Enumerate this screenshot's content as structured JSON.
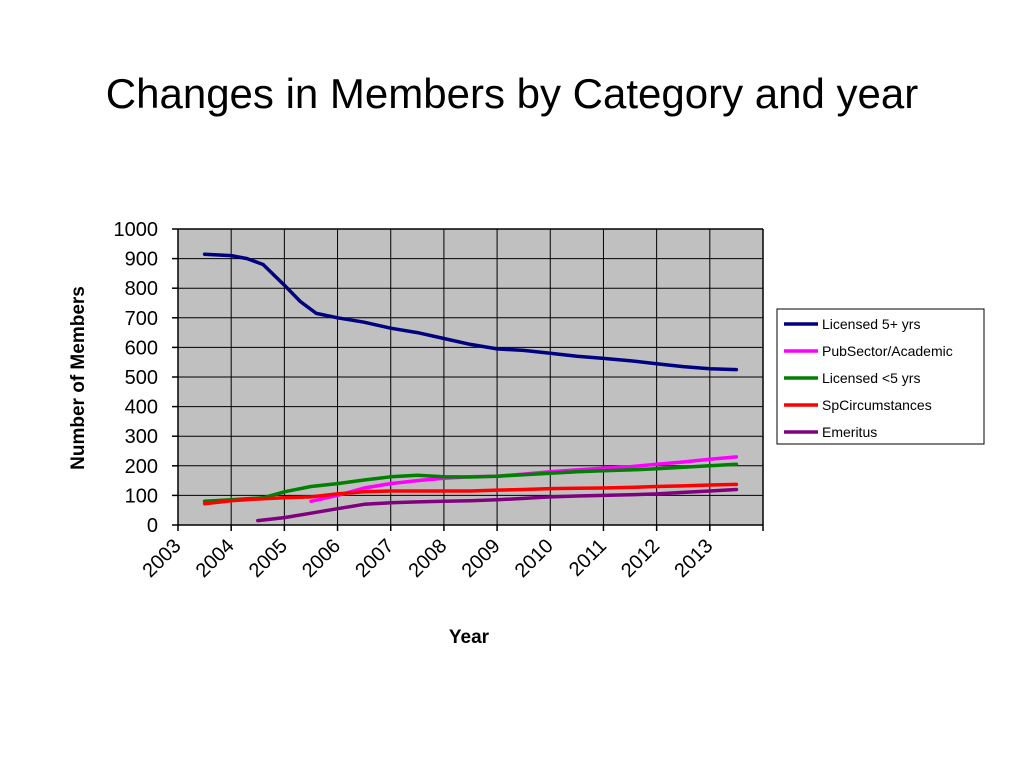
{
  "slide": {
    "title": "Changes in Members by Category and year"
  },
  "chart_data": {
    "type": "line",
    "xlabel": "Year",
    "ylabel": "Number of Members",
    "categories": [
      "2003",
      "2004",
      "2005",
      "2006",
      "2007",
      "2008",
      "2009",
      "2010",
      "2011",
      "2012",
      "2013"
    ],
    "xlim": [
      2003,
      2014
    ],
    "ylim": [
      0,
      1000
    ],
    "yticks": [
      0,
      100,
      200,
      300,
      400,
      500,
      600,
      700,
      800,
      900,
      1000
    ],
    "grid": true,
    "legend_position": "right",
    "plot_background": "#c0c0c0",
    "series": [
      {
        "name": "Licensed 5+ yrs",
        "color": "#000080",
        "points": [
          [
            2003.5,
            915
          ],
          [
            2004,
            910
          ],
          [
            2004.3,
            900
          ],
          [
            2004.6,
            880
          ],
          [
            2005,
            810
          ],
          [
            2005.3,
            755
          ],
          [
            2005.6,
            715
          ],
          [
            2006,
            700
          ],
          [
            2006.5,
            685
          ],
          [
            2007,
            665
          ],
          [
            2007.5,
            650
          ],
          [
            2008,
            630
          ],
          [
            2008.5,
            610
          ],
          [
            2009,
            595
          ],
          [
            2009.5,
            590
          ],
          [
            2010,
            580
          ],
          [
            2010.5,
            570
          ],
          [
            2011,
            563
          ],
          [
            2011.5,
            555
          ],
          [
            2012,
            545
          ],
          [
            2012.5,
            535
          ],
          [
            2013,
            528
          ],
          [
            2013.5,
            525
          ]
        ]
      },
      {
        "name": "PubSector/Academic",
        "color": "#ff00ff",
        "points": [
          [
            2005.5,
            80
          ],
          [
            2006,
            100
          ],
          [
            2006.5,
            125
          ],
          [
            2007,
            140
          ],
          [
            2007.5,
            150
          ],
          [
            2008,
            158
          ],
          [
            2008.5,
            163
          ],
          [
            2009,
            165
          ],
          [
            2009.5,
            172
          ],
          [
            2010,
            180
          ],
          [
            2010.5,
            186
          ],
          [
            2011,
            192
          ],
          [
            2011.5,
            197
          ],
          [
            2012,
            205
          ],
          [
            2012.5,
            213
          ],
          [
            2013,
            222
          ],
          [
            2013.5,
            230
          ]
        ]
      },
      {
        "name": "Licensed <5 yrs",
        "color": "#008000",
        "points": [
          [
            2003.5,
            80
          ],
          [
            2004,
            85
          ],
          [
            2004.6,
            92
          ],
          [
            2005,
            112
          ],
          [
            2005.5,
            130
          ],
          [
            2006,
            140
          ],
          [
            2006.5,
            152
          ],
          [
            2007,
            163
          ],
          [
            2007.5,
            168
          ],
          [
            2008,
            163
          ],
          [
            2008.5,
            162
          ],
          [
            2009,
            165
          ],
          [
            2009.5,
            170
          ],
          [
            2010,
            175
          ],
          [
            2010.5,
            180
          ],
          [
            2011,
            183
          ],
          [
            2011.5,
            186
          ],
          [
            2012,
            190
          ],
          [
            2012.5,
            195
          ],
          [
            2013,
            200
          ],
          [
            2013.5,
            205
          ]
        ]
      },
      {
        "name": "SpCircumstances",
        "color": "#ff0000",
        "points": [
          [
            2003.5,
            72
          ],
          [
            2004,
            82
          ],
          [
            2004.5,
            88
          ],
          [
            2005,
            92
          ],
          [
            2005.5,
            95
          ],
          [
            2006,
            105
          ],
          [
            2006.5,
            112
          ],
          [
            2007,
            115
          ],
          [
            2007.5,
            115
          ],
          [
            2008,
            115
          ],
          [
            2008.5,
            115
          ],
          [
            2009,
            118
          ],
          [
            2009.5,
            120
          ],
          [
            2010,
            123
          ],
          [
            2010.5,
            124
          ],
          [
            2011,
            125
          ],
          [
            2011.5,
            127
          ],
          [
            2012,
            130
          ],
          [
            2012.5,
            132
          ],
          [
            2013,
            135
          ],
          [
            2013.5,
            137
          ]
        ]
      },
      {
        "name": "Emeritus",
        "color": "#800080",
        "points": [
          [
            2004.5,
            15
          ],
          [
            2005,
            25
          ],
          [
            2005.5,
            40
          ],
          [
            2006,
            55
          ],
          [
            2006.5,
            70
          ],
          [
            2007,
            75
          ],
          [
            2007.5,
            78
          ],
          [
            2008,
            80
          ],
          [
            2008.5,
            82
          ],
          [
            2009,
            85
          ],
          [
            2009.5,
            90
          ],
          [
            2010,
            95
          ],
          [
            2010.5,
            98
          ],
          [
            2011,
            100
          ],
          [
            2011.5,
            102
          ],
          [
            2012,
            105
          ],
          [
            2012.5,
            110
          ],
          [
            2013,
            115
          ],
          [
            2013.5,
            120
          ]
        ]
      }
    ]
  }
}
